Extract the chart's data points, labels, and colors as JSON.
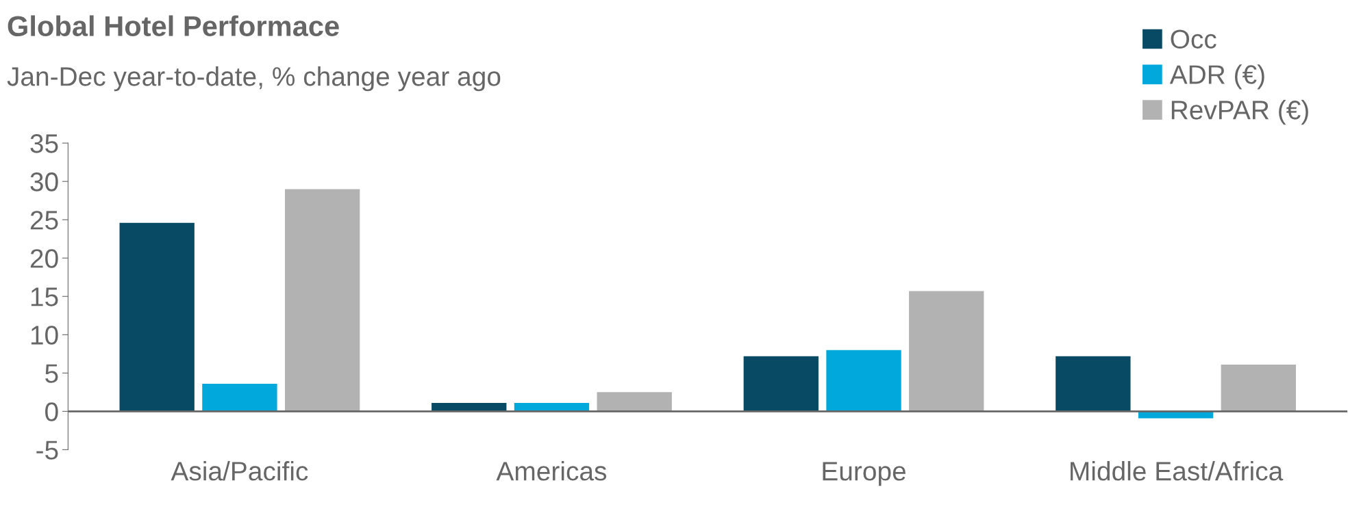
{
  "chart_data": {
    "type": "bar",
    "title": "Global Hotel Performace",
    "subtitle": "Jan-Dec year-to-date, % change year ago",
    "categories": [
      "Asia/Pacific",
      "Americas",
      "Europe",
      "Middle East/Africa"
    ],
    "series": [
      {
        "name": "Occ",
        "color": "#084a63",
        "values": [
          24.6,
          1.1,
          7.2,
          7.2
        ]
      },
      {
        "name": "ADR (€)",
        "color": "#00a8dc",
        "values": [
          3.6,
          1.1,
          8.0,
          -0.9
        ]
      },
      {
        "name": "RevPAR (€)",
        "color": "#b2b2b2",
        "values": [
          29.0,
          2.5,
          15.7,
          6.1
        ]
      }
    ],
    "ylim": [
      -5,
      35
    ],
    "yticks": [
      -5,
      0,
      5,
      10,
      15,
      20,
      25,
      30,
      35
    ],
    "grid": false,
    "legend": "top right"
  }
}
